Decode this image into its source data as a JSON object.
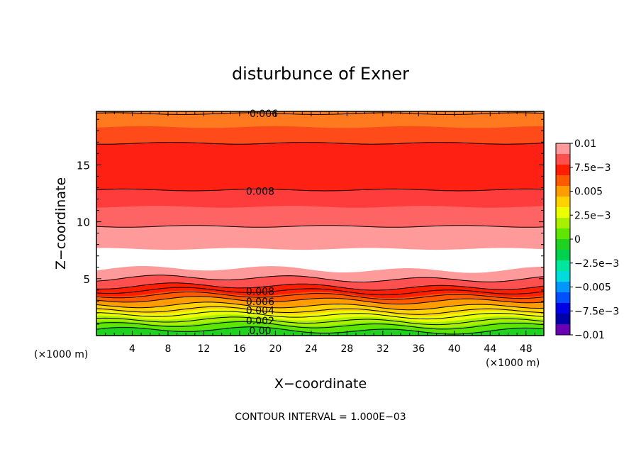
{
  "chart_data": {
    "type": "contour",
    "title": "disturbunce of Exner",
    "xlabel": "X−coordinate",
    "ylabel": "Z−coordinate",
    "x_unit": "(×1000 m)",
    "y_unit": "(×1000 m)",
    "xlim": [
      0,
      50
    ],
    "ylim": [
      0,
      19.7
    ],
    "x_ticks": [
      4,
      8,
      12,
      16,
      20,
      24,
      28,
      32,
      36,
      40,
      44,
      48
    ],
    "y_ticks": [
      5,
      10,
      15
    ],
    "contour_interval_text": "CONTOUR INTERVAL = 1.000E−03",
    "colorbar": {
      "min": -0.01,
      "max": 0.01,
      "labels": [
        "0.01",
        "7.5e−3",
        "0.005",
        "2.5e−3",
        "0",
        "−2.5e−3",
        "−0.005",
        "−7.5e−3",
        "−0.01"
      ],
      "colors": [
        "#ff9a9a",
        "#ff5050",
        "#ff1e00",
        "#ff5a00",
        "#ff9c00",
        "#ffd200",
        "#ecff00",
        "#a8f000",
        "#5fe600",
        "#1fd21f",
        "#00d24e",
        "#00e69c",
        "#00dcdc",
        "#0096ff",
        "#0050ff",
        "#0000e6",
        "#0000a8",
        "#6a00b4"
      ]
    },
    "contour_labels": [
      {
        "text": "0.006",
        "x": 18.7,
        "z": 19.5
      },
      {
        "text": "0.008",
        "x": 18.3,
        "z": 12.7
      },
      {
        "text": "0.008",
        "x": 18.3,
        "z": 3.9
      },
      {
        "text": "0.006",
        "x": 18.3,
        "z": 3.0
      },
      {
        "text": "0.004",
        "x": 18.3,
        "z": 2.2
      },
      {
        "text": "0.002",
        "x": 18.3,
        "z": 1.3
      },
      {
        "text": "0.00",
        "x": 18.3,
        "z": 0.45
      }
    ],
    "field_bands": [
      {
        "z_bottom": 18.3,
        "z_top": 19.7,
        "color": "#ff7a1e"
      },
      {
        "z_bottom": 16.9,
        "z_top": 18.3,
        "color": "#ff4a1a"
      },
      {
        "z_bottom": 12.8,
        "z_top": 16.9,
        "color": "#ff2014"
      },
      {
        "z_bottom": 11.3,
        "z_top": 12.8,
        "color": "#ff3c3c"
      },
      {
        "z_bottom": 9.6,
        "z_top": 11.3,
        "color": "#ff6464"
      },
      {
        "z_bottom": 7.6,
        "z_top": 9.6,
        "color": "#ff9a9a"
      },
      {
        "z_bottom": 5.8,
        "z_top": 7.6,
        "color": "#ffffff"
      },
      {
        "z_bottom": 5.0,
        "z_top": 5.8,
        "color": "#ff9a9a"
      },
      {
        "z_bottom": 4.3,
        "z_top": 5.0,
        "color": "#ff5050"
      },
      {
        "z_bottom": 3.6,
        "z_top": 4.3,
        "color": "#ff1e00"
      },
      {
        "z_bottom": 3.1,
        "z_top": 3.6,
        "color": "#ff5a00"
      },
      {
        "z_bottom": 2.6,
        "z_top": 3.1,
        "color": "#ff9c00"
      },
      {
        "z_bottom": 2.0,
        "z_top": 2.6,
        "color": "#ffd200"
      },
      {
        "z_bottom": 1.5,
        "z_top": 2.0,
        "color": "#ecff00"
      },
      {
        "z_bottom": 1.0,
        "z_top": 1.5,
        "color": "#a8f000"
      },
      {
        "z_bottom": 0.5,
        "z_top": 1.0,
        "color": "#5fe600"
      },
      {
        "z_bottom": 0.0,
        "z_top": 0.5,
        "color": "#1fd21f"
      }
    ],
    "contour_lines_z": [
      19.5,
      16.9,
      12.8,
      9.6,
      5.0,
      4.3,
      3.9,
      3.5,
      3.1,
      2.6,
      2.2,
      1.8,
      1.3,
      0.9,
      0.45
    ],
    "grid": false,
    "legend": "colorbar-right"
  }
}
